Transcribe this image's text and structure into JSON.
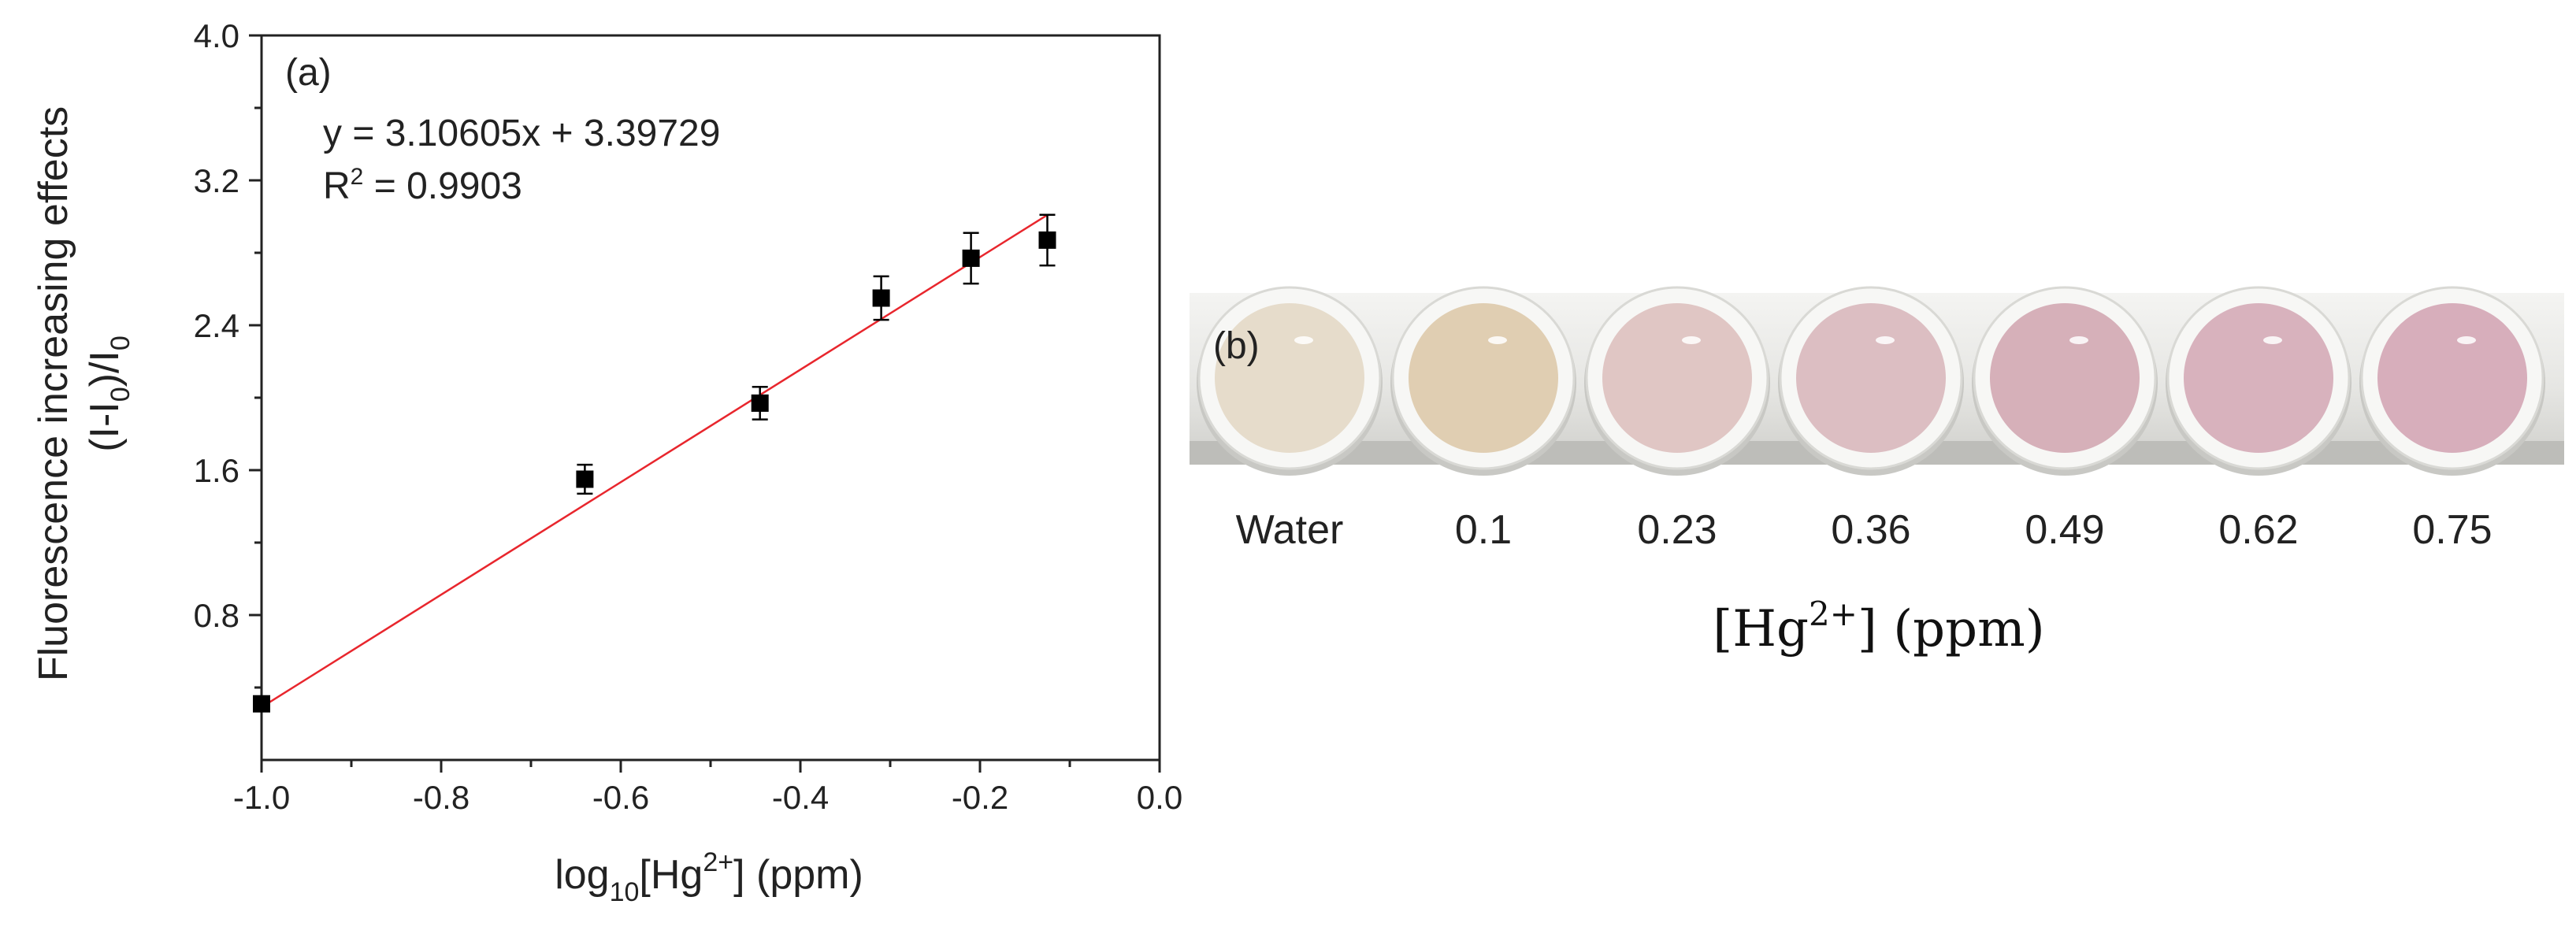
{
  "chart_data": {
    "type": "scatter",
    "panel_label": "(a)",
    "x": [
      -1.0,
      -0.64,
      -0.445,
      -0.31,
      -0.21,
      -0.125
    ],
    "y": [
      0.31,
      1.55,
      1.97,
      2.55,
      2.77,
      2.87
    ],
    "y_err": [
      0.04,
      0.08,
      0.09,
      0.12,
      0.14,
      0.14
    ],
    "fit": {
      "slope": 3.10605,
      "intercept": 3.39729,
      "x_range": [
        -1.0,
        -0.125
      ],
      "color": "#e8262d",
      "equation_text": "y = 3.10605x + 3.39729",
      "r2_prefix": "R",
      "r2_sup": "2",
      "r2_value": " = 0.9903"
    },
    "xlim": [
      -1.0,
      0.0
    ],
    "ylim": [
      0.0,
      4.0
    ],
    "xticks": [
      -1.0,
      -0.8,
      -0.6,
      -0.4,
      -0.2,
      0.0
    ],
    "xtick_labels": [
      "-1.0",
      "-0.8",
      "-0.6",
      "-0.4",
      "-0.2",
      "0.0"
    ],
    "yticks": [
      0.8,
      1.6,
      2.4,
      3.2,
      4.0
    ],
    "ytick_labels": [
      "0.8",
      "1.6",
      "2.4",
      "3.2",
      "4.0"
    ],
    "xlabel": {
      "pre": "log",
      "sub": "10",
      "mid": "[Hg",
      "sup": "2+",
      "post": "] (ppm)"
    },
    "ylabel": {
      "line1": "Fluorescence increasing effects",
      "line2_a": "(I-I",
      "line2_sub1": "0",
      "line2_b": ")/I",
      "line2_sub2": "0"
    },
    "marker_color": "#000000"
  },
  "panel_b": {
    "label": "(b)",
    "samples": [
      {
        "label": "Water",
        "color": "#e6dccb"
      },
      {
        "label": "0.1",
        "color": "#e0ceb2"
      },
      {
        "label": "0.23",
        "color": "#e0c6c4"
      },
      {
        "label": "0.36",
        "color": "#dcbec2"
      },
      {
        "label": "0.49",
        "color": "#d6b0b9"
      },
      {
        "label": "0.62",
        "color": "#d8b2bd"
      },
      {
        "label": "0.75",
        "color": "#d7aebb"
      }
    ],
    "axis_label": {
      "pre": "[Hg",
      "sup": "2+",
      "post": "] (ppm)"
    }
  }
}
